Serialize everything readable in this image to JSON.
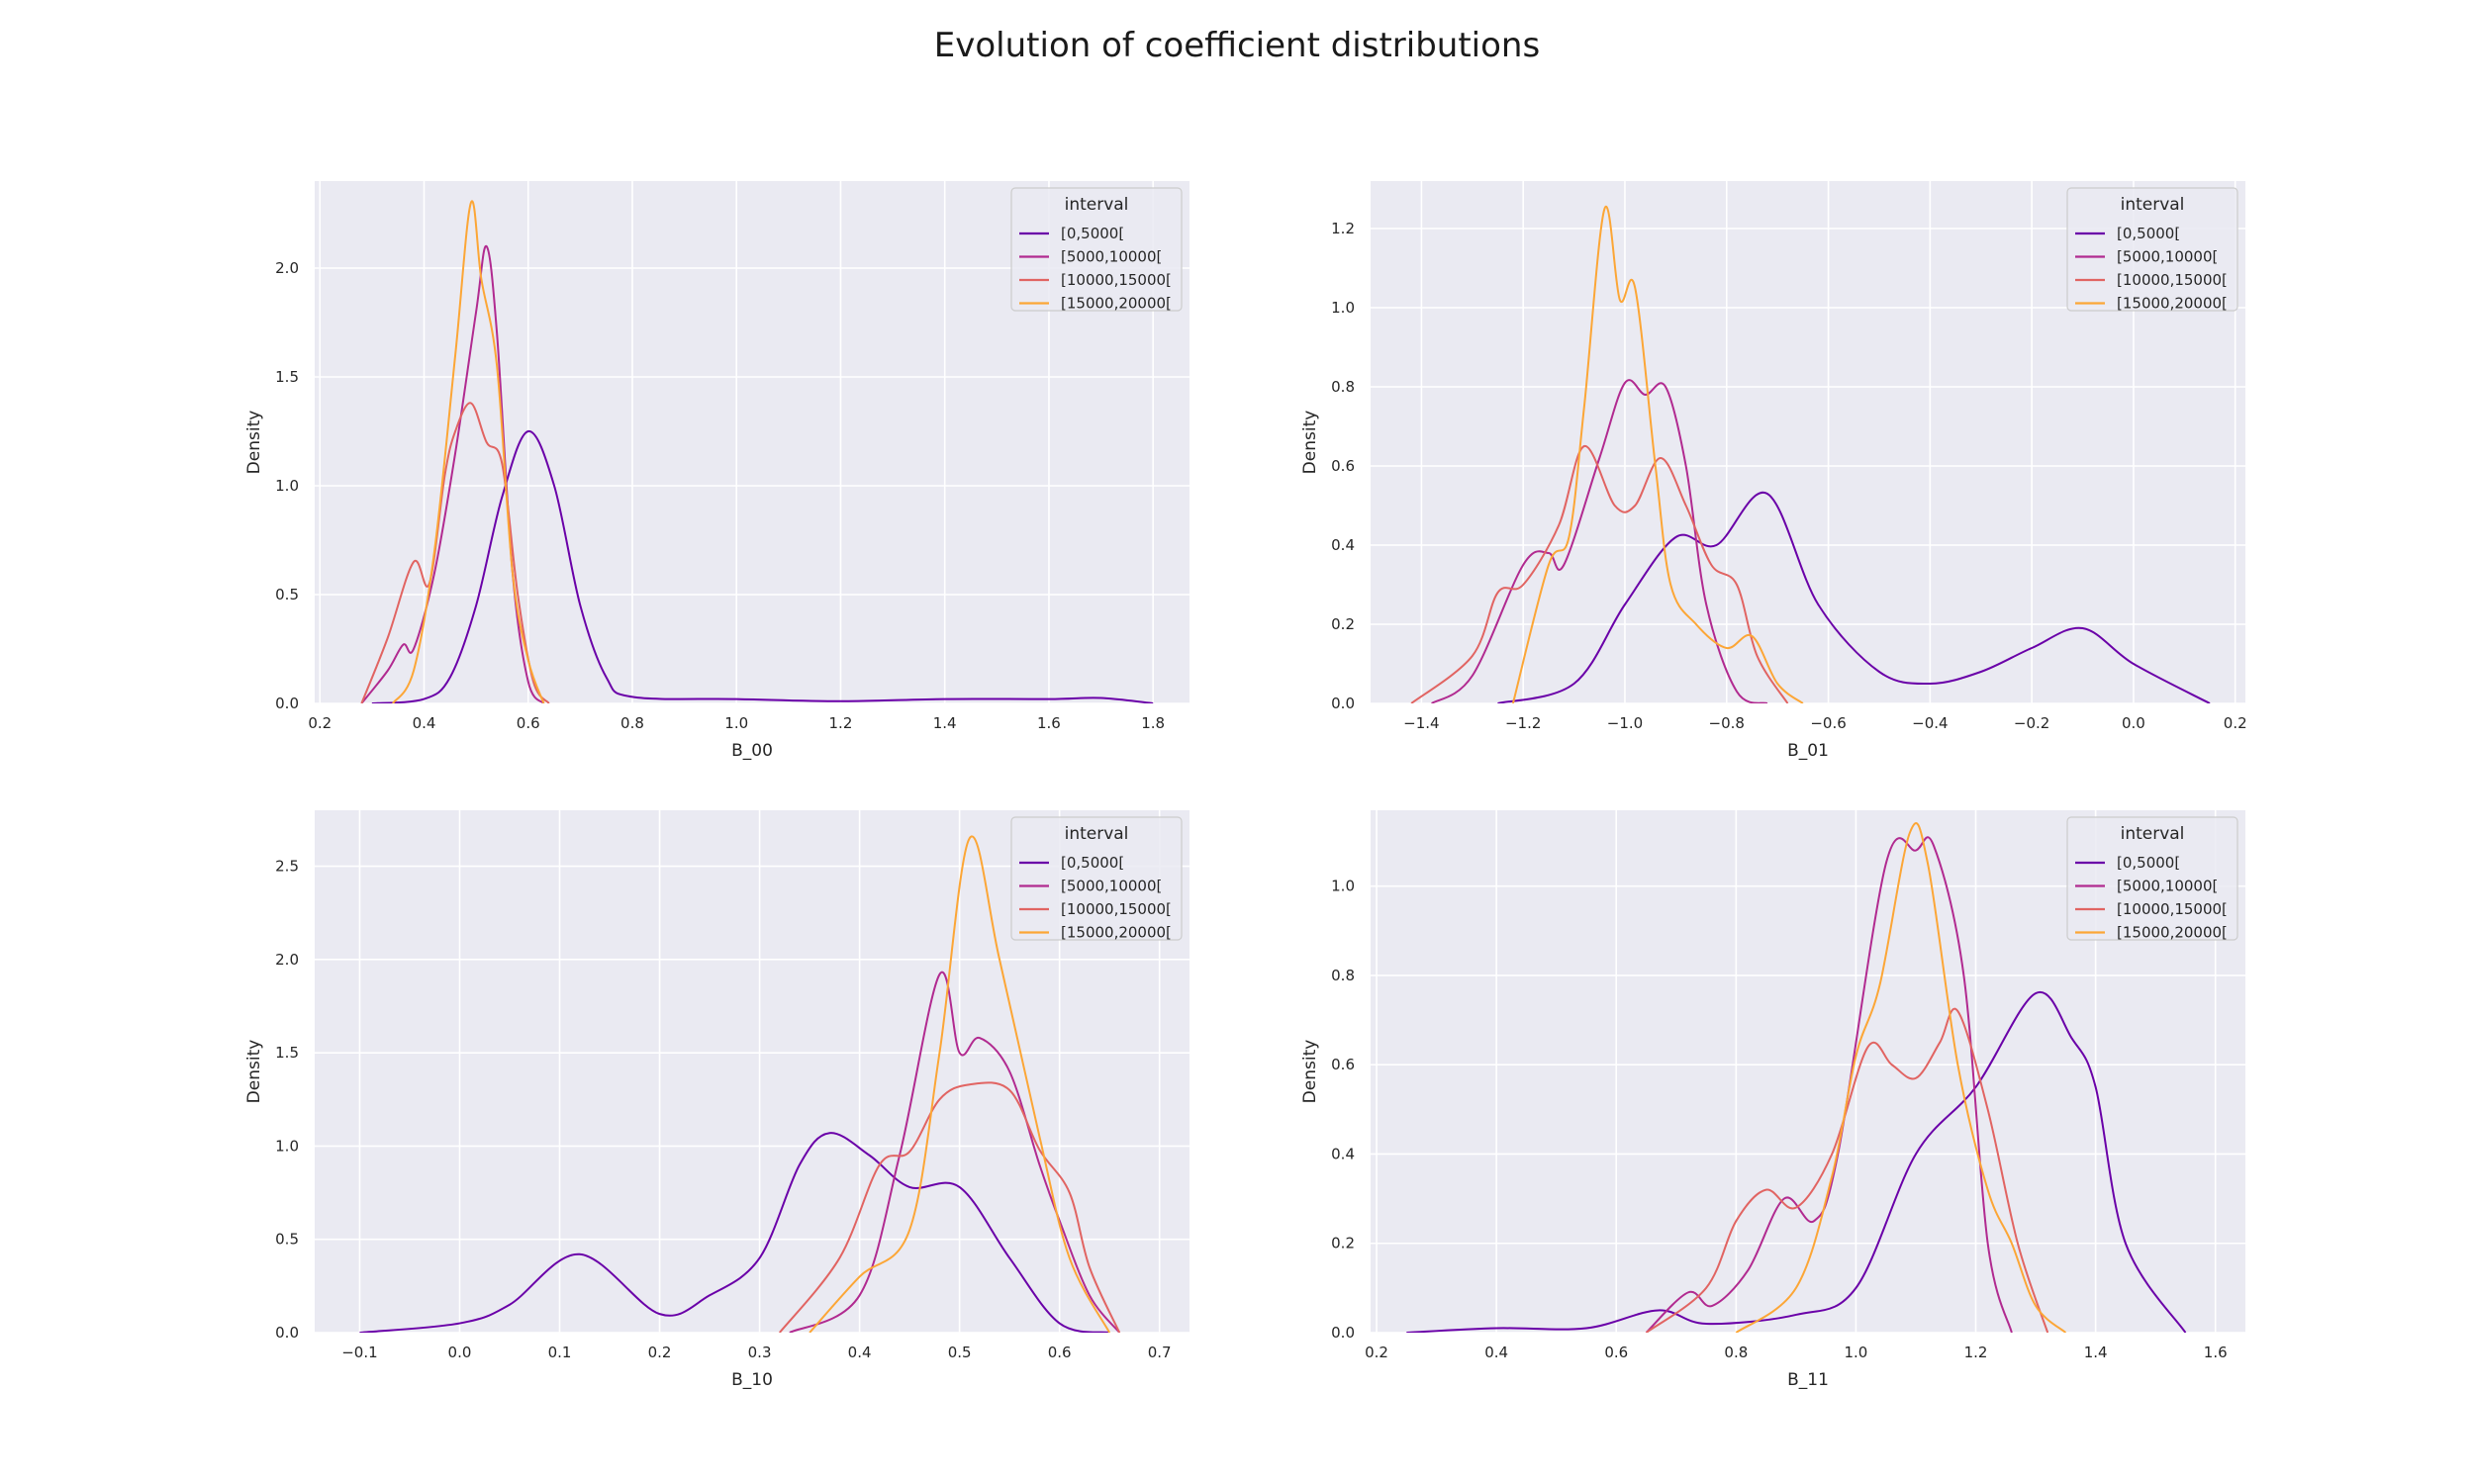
{
  "figure": {
    "title": "Evolution of coefficient distributions",
    "background": "#ffffff",
    "axes_background": "#eaeaf2",
    "grid_color": "#ffffff"
  },
  "legend": {
    "title": "interval",
    "entries": [
      "[0,5000[",
      "[5000,10000[",
      "[10000,15000[",
      "[15000,20000["
    ],
    "colors": [
      "#6a00a8",
      "#b12a90",
      "#e16462",
      "#fca636"
    ],
    "placement": "upper right"
  },
  "chart_data": [
    {
      "type": "line",
      "kind": "kde",
      "xlabel": "B_00",
      "ylabel": "Density",
      "xlim": [
        0.19,
        1.87
      ],
      "ylim": [
        0,
        2.4
      ],
      "xticks": [
        0.2,
        0.4,
        0.6,
        0.8,
        1.0,
        1.2,
        1.4,
        1.6,
        1.8
      ],
      "xtick_labels": [
        "0.2",
        "0.4",
        "0.6",
        "0.8",
        "1.0",
        "1.2",
        "1.4",
        "1.6",
        "1.8"
      ],
      "yticks": [
        0.0,
        0.5,
        1.0,
        1.5,
        2.0
      ],
      "ytick_labels": [
        "0.0",
        "0.5",
        "1.0",
        "1.5",
        "2.0"
      ],
      "grid": true,
      "legend": "upper right",
      "series": [
        {
          "name": "[0,5000[",
          "x": [
            0.3,
            0.4,
            0.45,
            0.5,
            0.55,
            0.6,
            0.65,
            0.7,
            0.75,
            0.8,
            1.0,
            1.2,
            1.4,
            1.6,
            1.7,
            1.8
          ],
          "y": [
            0.0,
            0.02,
            0.12,
            0.45,
            0.95,
            1.25,
            1.0,
            0.45,
            0.12,
            0.03,
            0.02,
            0.01,
            0.02,
            0.02,
            0.025,
            0.0
          ]
        },
        {
          "name": "[5000,10000[",
          "x": [
            0.28,
            0.33,
            0.36,
            0.38,
            0.42,
            0.46,
            0.5,
            0.52,
            0.54,
            0.57,
            0.6,
            0.63
          ],
          "y": [
            0.0,
            0.15,
            0.27,
            0.25,
            0.6,
            1.15,
            1.8,
            2.1,
            1.7,
            0.6,
            0.1,
            0.0
          ]
        },
        {
          "name": "[10000,15000[",
          "x": [
            0.28,
            0.33,
            0.38,
            0.41,
            0.44,
            0.46,
            0.49,
            0.52,
            0.55,
            0.58,
            0.61,
            0.64
          ],
          "y": [
            0.0,
            0.3,
            0.65,
            0.55,
            1.05,
            1.25,
            1.38,
            1.2,
            1.1,
            0.5,
            0.1,
            0.0
          ]
        },
        {
          "name": "[15000,20000[",
          "x": [
            0.34,
            0.38,
            0.42,
            0.46,
            0.49,
            0.51,
            0.54,
            0.57,
            0.6,
            0.63
          ],
          "y": [
            0.0,
            0.15,
            0.7,
            1.6,
            2.3,
            1.95,
            1.55,
            0.6,
            0.2,
            0.0
          ]
        }
      ]
    },
    {
      "type": "line",
      "kind": "kde",
      "xlabel": "B_01",
      "ylabel": "Density",
      "xlim": [
        -1.5,
        0.22
      ],
      "ylim": [
        0,
        1.32
      ],
      "xticks": [
        -1.4,
        -1.2,
        -1.0,
        -0.8,
        -0.6,
        -0.4,
        -0.2,
        0.0,
        0.2
      ],
      "xtick_labels": [
        "−1.4",
        "−1.2",
        "−1.0",
        "−0.8",
        "−0.6",
        "−0.4",
        "−0.2",
        "0.0",
        "0.2"
      ],
      "yticks": [
        0.0,
        0.2,
        0.4,
        0.6,
        0.8,
        1.0,
        1.2
      ],
      "ytick_labels": [
        "0.0",
        "0.2",
        "0.4",
        "0.6",
        "0.8",
        "1.0",
        "1.2"
      ],
      "grid": true,
      "legend": "upper right",
      "series": [
        {
          "name": "[0,5000[",
          "x": [
            -1.25,
            -1.1,
            -1.0,
            -0.9,
            -0.82,
            -0.72,
            -0.62,
            -0.5,
            -0.4,
            -0.3,
            -0.2,
            -0.1,
            0.0,
            0.15
          ],
          "y": [
            0.0,
            0.05,
            0.25,
            0.42,
            0.4,
            0.53,
            0.25,
            0.08,
            0.05,
            0.08,
            0.14,
            0.19,
            0.1,
            0.0
          ]
        },
        {
          "name": "[5000,10000[",
          "x": [
            -1.38,
            -1.3,
            -1.2,
            -1.15,
            -1.12,
            -1.05,
            -1.0,
            -0.96,
            -0.92,
            -0.88,
            -0.84,
            -0.78,
            -0.72
          ],
          "y": [
            0.0,
            0.07,
            0.35,
            0.38,
            0.35,
            0.62,
            0.81,
            0.78,
            0.8,
            0.6,
            0.25,
            0.03,
            0.0
          ]
        },
        {
          "name": "[10000,15000[",
          "x": [
            -1.42,
            -1.3,
            -1.25,
            -1.2,
            -1.13,
            -1.08,
            -1.02,
            -0.98,
            -0.93,
            -0.88,
            -0.83,
            -0.78,
            -0.74,
            -0.68
          ],
          "y": [
            0.0,
            0.12,
            0.28,
            0.3,
            0.45,
            0.65,
            0.5,
            0.5,
            0.62,
            0.5,
            0.35,
            0.3,
            0.12,
            0.0
          ]
        },
        {
          "name": "[15000,20000[",
          "x": [
            -1.22,
            -1.15,
            -1.11,
            -1.08,
            -1.04,
            -1.01,
            -0.98,
            -0.94,
            -0.91,
            -0.86,
            -0.8,
            -0.75,
            -0.7,
            -0.65
          ],
          "y": [
            0.0,
            0.35,
            0.42,
            0.75,
            1.25,
            1.02,
            1.05,
            0.6,
            0.3,
            0.2,
            0.14,
            0.17,
            0.05,
            0.0
          ]
        }
      ]
    },
    {
      "type": "line",
      "kind": "kde",
      "xlabel": "B_10",
      "ylabel": "Density",
      "xlim": [
        -0.145,
        0.73
      ],
      "ylim": [
        0,
        2.8
      ],
      "xticks": [
        -0.1,
        0.0,
        0.1,
        0.2,
        0.3,
        0.4,
        0.5,
        0.6,
        0.7
      ],
      "xtick_labels": [
        "−0.1",
        "0.0",
        "0.1",
        "0.2",
        "0.3",
        "0.4",
        "0.5",
        "0.6",
        "0.7"
      ],
      "yticks": [
        0.0,
        0.5,
        1.0,
        1.5,
        2.0,
        2.5
      ],
      "ytick_labels": [
        "0.0",
        "0.5",
        "1.0",
        "1.5",
        "2.0",
        "2.5"
      ],
      "grid": true,
      "legend": "upper right",
      "series": [
        {
          "name": "[0,5000[",
          "x": [
            -0.1,
            0.0,
            0.05,
            0.12,
            0.2,
            0.25,
            0.3,
            0.34,
            0.37,
            0.41,
            0.45,
            0.5,
            0.55,
            0.6,
            0.65
          ],
          "y": [
            0.0,
            0.05,
            0.15,
            0.42,
            0.1,
            0.2,
            0.4,
            0.9,
            1.07,
            0.95,
            0.78,
            0.78,
            0.4,
            0.05,
            0.0
          ]
        },
        {
          "name": "[5000,10000[",
          "x": [
            0.33,
            0.4,
            0.44,
            0.48,
            0.5,
            0.52,
            0.55,
            0.58,
            0.6,
            0.63,
            0.66
          ],
          "y": [
            0.0,
            0.2,
            0.95,
            1.92,
            1.5,
            1.58,
            1.4,
            0.9,
            0.6,
            0.2,
            0.0
          ]
        },
        {
          "name": "[10000,15000[",
          "x": [
            0.32,
            0.38,
            0.42,
            0.45,
            0.48,
            0.51,
            0.55,
            0.58,
            0.61,
            0.63,
            0.66
          ],
          "y": [
            0.0,
            0.4,
            0.9,
            0.97,
            1.25,
            1.33,
            1.3,
            0.98,
            0.75,
            0.35,
            0.0
          ]
        },
        {
          "name": "[15000,20000[",
          "x": [
            0.35,
            0.4,
            0.45,
            0.48,
            0.51,
            0.54,
            0.58,
            0.61,
            0.65
          ],
          "y": [
            0.0,
            0.3,
            0.55,
            1.5,
            2.65,
            2.0,
            1.05,
            0.4,
            0.0
          ]
        }
      ]
    },
    {
      "type": "line",
      "kind": "kde",
      "xlabel": "B_11",
      "ylabel": "Density",
      "xlim": [
        0.19,
        1.65
      ],
      "ylim": [
        0,
        1.17
      ],
      "xticks": [
        0.2,
        0.4,
        0.6,
        0.8,
        1.0,
        1.2,
        1.4,
        1.6
      ],
      "xtick_labels": [
        "0.2",
        "0.4",
        "0.6",
        "0.8",
        "1.0",
        "1.2",
        "1.4",
        "1.6"
      ],
      "yticks": [
        0.0,
        0.2,
        0.4,
        0.6,
        0.8,
        1.0
      ],
      "ytick_labels": [
        "0.0",
        "0.2",
        "0.4",
        "0.6",
        "0.8",
        "1.0"
      ],
      "grid": true,
      "legend": "upper right",
      "series": [
        {
          "name": "[0,5000[",
          "x": [
            0.25,
            0.4,
            0.55,
            0.67,
            0.75,
            0.9,
            1.0,
            1.1,
            1.2,
            1.3,
            1.36,
            1.4,
            1.45,
            1.55
          ],
          "y": [
            0.0,
            0.01,
            0.01,
            0.05,
            0.02,
            0.04,
            0.1,
            0.4,
            0.55,
            0.76,
            0.66,
            0.55,
            0.2,
            0.0
          ]
        },
        {
          "name": "[5000,10000[",
          "x": [
            0.65,
            0.72,
            0.76,
            0.82,
            0.88,
            0.93,
            0.97,
            1.05,
            1.1,
            1.13,
            1.18,
            1.22,
            1.26
          ],
          "y": [
            0.0,
            0.09,
            0.06,
            0.14,
            0.3,
            0.25,
            0.4,
            1.05,
            1.08,
            1.09,
            0.8,
            0.2,
            0.0
          ]
        },
        {
          "name": "[10000,15000[",
          "x": [
            0.65,
            0.75,
            0.8,
            0.85,
            0.9,
            0.96,
            1.02,
            1.06,
            1.1,
            1.14,
            1.17,
            1.22,
            1.27,
            1.32
          ],
          "y": [
            0.0,
            0.1,
            0.25,
            0.32,
            0.28,
            0.4,
            0.64,
            0.6,
            0.57,
            0.65,
            0.72,
            0.5,
            0.2,
            0.0
          ]
        },
        {
          "name": "[15000,20000[",
          "x": [
            0.8,
            0.9,
            0.96,
            1.0,
            1.04,
            1.09,
            1.12,
            1.17,
            1.22,
            1.26,
            1.3,
            1.35
          ],
          "y": [
            0.0,
            0.1,
            0.35,
            0.62,
            0.78,
            1.12,
            1.05,
            0.6,
            0.32,
            0.2,
            0.06,
            0.0
          ]
        }
      ]
    }
  ]
}
